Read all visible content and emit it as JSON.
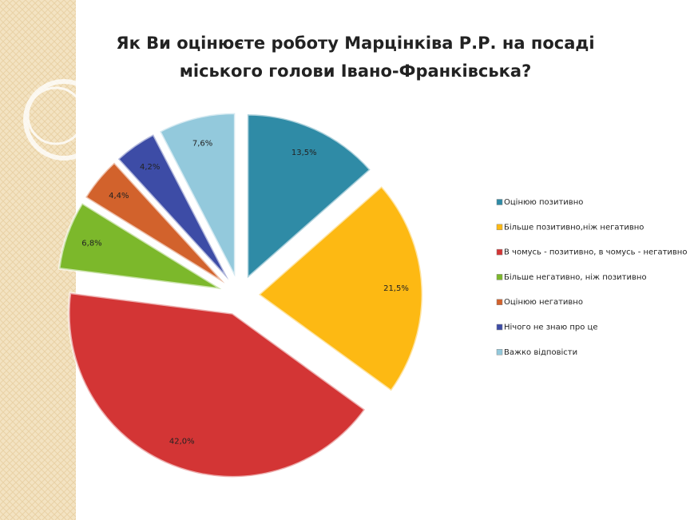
{
  "chart_data": {
    "type": "pie",
    "title": [
      "Як Ви оцінюєте роботу Марцінківа Р.Р. на посаді",
      "міського голови Івано-Франківська?"
    ],
    "labels": [
      "Оцінюю позитивно",
      "Більше позитивно,ніж негативно",
      "В чомусь - позитивно, в чомусь - негативно",
      "Більше негативно, ніж позитивно",
      "Оцінюю негативно",
      "Нічого не знаю про це",
      "Важко відповісти"
    ],
    "values": [
      13.5,
      21.5,
      42.0,
      6.8,
      4.4,
      4.2,
      7.6
    ],
    "value_labels": [
      "13,5%",
      "21,5%",
      "42,0%",
      "6,8%",
      "4,4%",
      "4,2%",
      "7,6%"
    ],
    "colors": [
      "#2f8ba6",
      "#fdb913",
      "#d33535",
      "#7cb82b",
      "#d2622c",
      "#3d4ca6",
      "#93c9dc"
    ],
    "legend": "right"
  }
}
